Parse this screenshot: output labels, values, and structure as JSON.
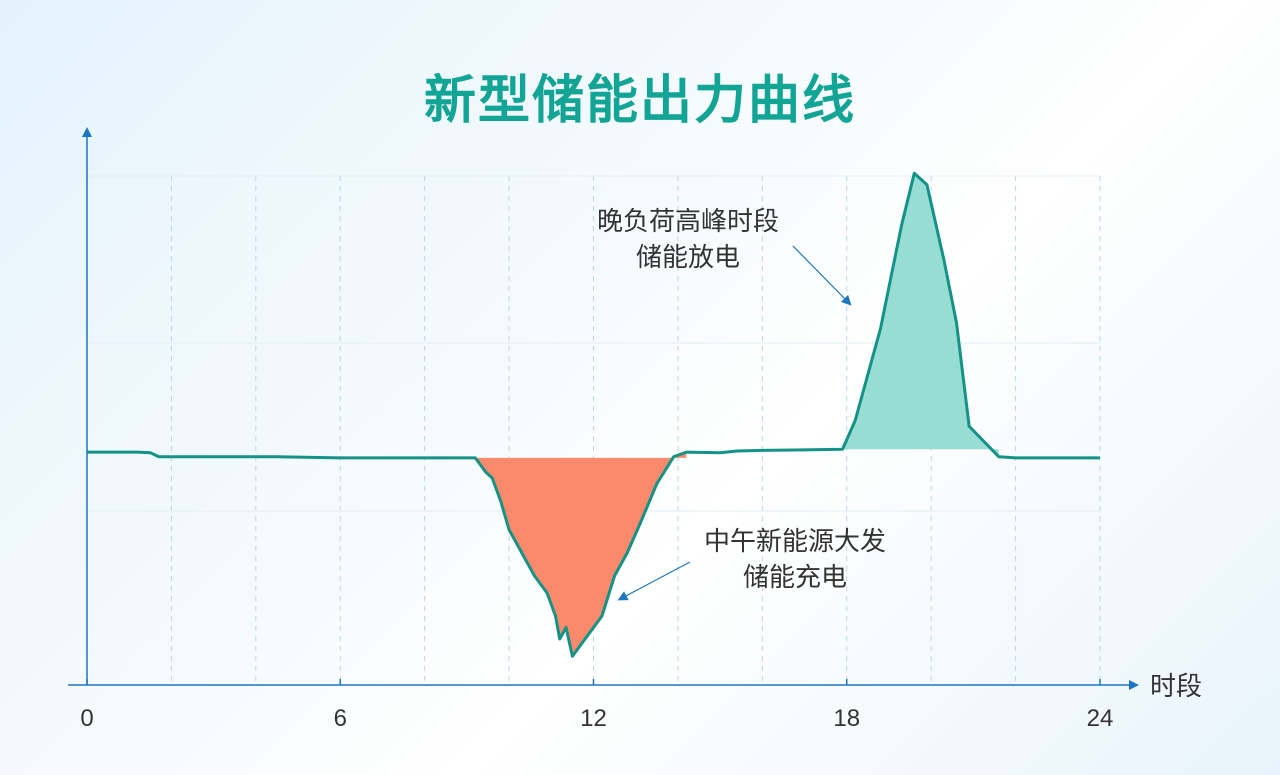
{
  "title": "新型储能出力曲线",
  "chart_data": {
    "type": "line",
    "title": "新型储能出力曲线",
    "xlabel": "时段",
    "ylabel": "",
    "xlim": [
      0,
      24
    ],
    "ylim": [
      -40,
      57
    ],
    "xticks": [
      0,
      6,
      12,
      18,
      24
    ],
    "grid": true,
    "series": [
      {
        "x": [
          0,
          1.2,
          1.5,
          1.7,
          3,
          4.5,
          6,
          7.5,
          9.2,
          9.45,
          9.6,
          9.8,
          10,
          10.3,
          10.6,
          10.9,
          11.1,
          11.2,
          11.35,
          11.5,
          11.8,
          12.2,
          12.5,
          12.8,
          13.1,
          13.5,
          13.9,
          14.2,
          15,
          15.4,
          16,
          17,
          17.9,
          18.2,
          18.8,
          19.3,
          19.6,
          19.9,
          20.3,
          20.6,
          20.9,
          21.6,
          22,
          24
        ],
        "y": [
          0.5,
          0.5,
          0.4,
          -0.3,
          -0.3,
          -0.3,
          -0.5,
          -0.5,
          -0.5,
          -3,
          -4,
          -8,
          -13,
          -17,
          -21,
          -24,
          -28,
          -32,
          -30,
          -35,
          -32,
          -28,
          -21,
          -17,
          -12,
          -5,
          -0.3,
          0.5,
          0.4,
          0.7,
          0.8,
          0.9,
          1,
          6,
          22,
          40,
          49,
          47,
          34,
          23,
          5,
          -0.3,
          -0.5,
          -0.5
        ]
      }
    ],
    "annotations": [
      {
        "lines": [
          "晚负荷高峰时段",
          "储能放电"
        ],
        "x": 20.0,
        "y": 49
      },
      {
        "lines": [
          "中午新能源大发",
          "储能充电"
        ],
        "x": 11.4,
        "y": -35
      }
    ],
    "colors": {
      "line": "#149287",
      "discharge": "#97ddd3",
      "charge": "#fb8a6c",
      "axis": "#1c76c2",
      "title": "#12a596"
    }
  }
}
